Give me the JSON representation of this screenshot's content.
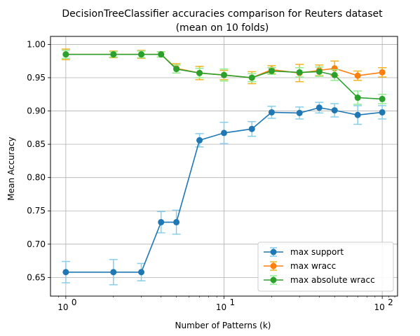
{
  "chart_data": {
    "type": "line",
    "title_line1": "DecisionTreeClassifier accuracies comparison for Reuters dataset",
    "title_line2": "(mean on 10 folds)",
    "xlabel": "Number of Patterns (k)",
    "ylabel": "Mean Accuracy",
    "xscale": "log",
    "xlim": [
      0.8,
      125
    ],
    "ylim": [
      0.622,
      1.012
    ],
    "grid": true,
    "legend_position": "lower-right",
    "x_ticks": [
      {
        "value": 1,
        "base": "10",
        "exp": "0"
      },
      {
        "value": 10,
        "base": "10",
        "exp": "1"
      },
      {
        "value": 100,
        "base": "10",
        "exp": "2"
      }
    ],
    "y_ticks": [
      "0.65",
      "0.70",
      "0.75",
      "0.80",
      "0.85",
      "0.90",
      "0.95",
      "1.00"
    ],
    "x": [
      1,
      2,
      3,
      4,
      5,
      7,
      10,
      15,
      20,
      30,
      40,
      50,
      70,
      100
    ],
    "series": [
      {
        "name": "max support",
        "color": "#1f77b4",
        "errcolor": "#87ceeb",
        "values": [
          0.658,
          0.658,
          0.658,
          0.733,
          0.733,
          0.856,
          0.867,
          0.873,
          0.898,
          0.897,
          0.905,
          0.901,
          0.894,
          0.898
        ],
        "errors": [
          0.016,
          0.019,
          0.013,
          0.016,
          0.018,
          0.01,
          0.016,
          0.011,
          0.009,
          0.009,
          0.008,
          0.01,
          0.014,
          0.01
        ]
      },
      {
        "name": "max wracc",
        "color": "#ff7f0e",
        "errcolor": "#f0b323",
        "values": [
          0.985,
          0.985,
          0.985,
          0.985,
          0.964,
          0.957,
          0.954,
          0.95,
          0.962,
          0.957,
          0.961,
          0.964,
          0.953,
          0.958
        ],
        "errors": [
          0.008,
          0.005,
          0.006,
          0.004,
          0.007,
          0.01,
          0.007,
          0.009,
          0.006,
          0.013,
          0.008,
          0.011,
          0.007,
          0.007
        ]
      },
      {
        "name": "max absolute wracc",
        "color": "#2ca02c",
        "errcolor": "#90ee90",
        "values": [
          0.985,
          0.985,
          0.985,
          0.985,
          0.963,
          0.957,
          0.954,
          0.95,
          0.96,
          0.958,
          0.959,
          0.954,
          0.92,
          0.918
        ],
        "errors": [
          0.006,
          0.004,
          0.005,
          0.004,
          0.006,
          0.007,
          0.009,
          0.006,
          0.005,
          0.007,
          0.007,
          0.008,
          0.01,
          0.007
        ]
      }
    ]
  }
}
